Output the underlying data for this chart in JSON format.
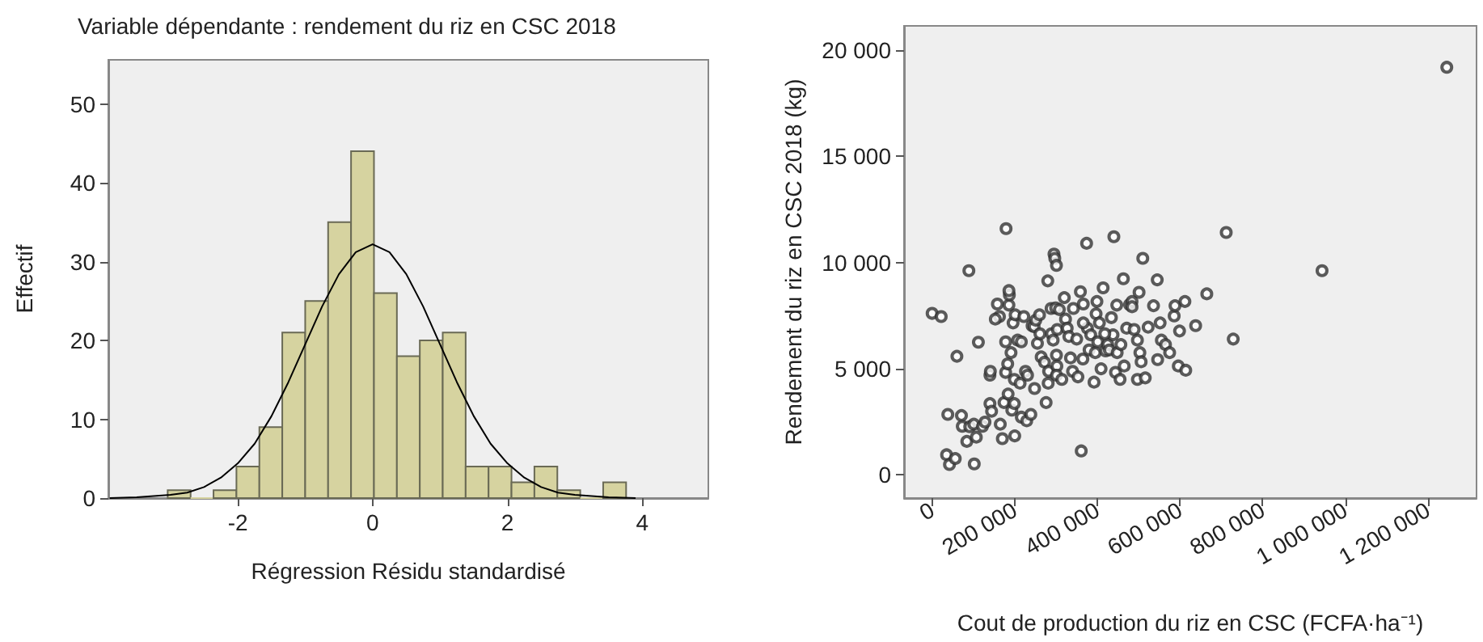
{
  "chart_data": [
    {
      "type": "histogram",
      "title": "Variable dépendante : rendement du riz en CSC 2018",
      "xlabel": "Régression Résidu standardisé",
      "ylabel": "Effectif",
      "bins": [
        -3.04,
        -2.7,
        -2.36,
        -2.02,
        -1.68,
        -1.34,
        -1.0,
        -0.66,
        -0.32,
        0.02,
        0.36,
        0.7,
        1.04,
        1.38,
        1.72,
        2.06,
        2.4,
        2.74,
        3.08,
        3.42,
        3.76
      ],
      "series": [
        {
          "type": "histogram",
          "color": "#d6d3a0",
          "values": [
            1,
            0,
            1,
            4,
            9,
            21,
            25,
            35,
            44,
            26,
            18,
            20,
            21,
            4,
            4,
            2,
            4,
            1,
            0,
            2
          ]
        },
        {
          "type": "line",
          "color": "#000000",
          "x": [
            -3.9,
            -3.5,
            -3,
            -2.75,
            -2.5,
            -2.25,
            -2,
            -1.75,
            -1.5,
            -1.25,
            -1,
            -0.75,
            -0.5,
            -0.25,
            0,
            0.25,
            0.5,
            0.75,
            1,
            1.25,
            1.5,
            1.75,
            2,
            2.25,
            2.5,
            2.75,
            3,
            3.5,
            3.9
          ],
          "values": [
            0.0,
            0.1,
            0.4,
            0.7,
            1.4,
            2.6,
            4.4,
            6.9,
            10.4,
            14.7,
            19.5,
            24.3,
            28.4,
            31.2,
            32.2,
            31.2,
            28.4,
            24.3,
            19.5,
            14.7,
            10.4,
            6.9,
            4.4,
            2.6,
            1.4,
            0.7,
            0.4,
            0.1,
            0.0
          ]
        }
      ],
      "xlim": [
        -3.92,
        4.98
      ],
      "ylim": [
        0,
        55.6
      ],
      "xticks": [
        -2,
        0,
        2,
        4
      ],
      "yticks": [
        0,
        10,
        20,
        30,
        40,
        50
      ],
      "grid": false,
      "marker": "none"
    },
    {
      "type": "scatter",
      "xlabel": "Cout de production du riz en CSC (FCFA·ha⁻¹)",
      "ylabel": "Rendement du riz en CSC 2018 (kg)",
      "color": "#333333",
      "marker": "circle",
      "grid": false,
      "xlim": [
        -68000,
        1318000
      ],
      "ylim": [
        -1100,
        21140
      ],
      "xticks": [
        0,
        {
          "value": 200000,
          "label": "200 000"
        },
        {
          "value": 400000,
          "label": "400 000"
        },
        {
          "value": 600000,
          "label": "600 000"
        },
        {
          "value": 800000,
          "label": "800 000"
        },
        {
          "value": 1000000,
          "label": "1 000 000"
        },
        {
          "value": 1200000,
          "label": "1 200 000"
        }
      ],
      "yticks": [
        0,
        {
          "value": 5000,
          "label": "5 000"
        },
        {
          "value": 10000,
          "label": "10 000"
        },
        {
          "value": 15000,
          "label": "15 000"
        },
        {
          "value": 20000,
          "label": "20 000"
        }
      ],
      "x": [
        0,
        22000,
        38000,
        35000,
        42000,
        56000,
        60000,
        71000,
        73000,
        84000,
        89000,
        91000,
        101000,
        102000,
        107000,
        112000,
        122000,
        128000,
        140000,
        140000,
        141000,
        144000,
        158000,
        163000,
        165000,
        170000,
        174000,
        178000,
        178000,
        179000,
        184000,
        186000,
        187000,
        183000,
        191000,
        193000,
        196000,
        199000,
        200000,
        201000,
        199000,
        207000,
        213000,
        216000,
        222000,
        226000,
        229000,
        231000,
        239000,
        242000,
        247000,
        248000,
        251000,
        255000,
        260000,
        264000,
        272000,
        276000,
        280000,
        281000,
        282000,
        288000,
        289000,
        293000,
        295000,
        297000,
        301000,
        299000,
        301000,
        302000,
        301000,
        303000,
        308000,
        314000,
        320000,
        323000,
        327000,
        331000,
        335000,
        340000,
        342000,
        350000,
        353000,
        359000,
        361000,
        365000,
        366000,
        374000,
        376000,
        380000,
        384000,
        392000,
        395000,
        397000,
        401000,
        405000,
        409000,
        414000,
        420000,
        425000,
        429000,
        434000,
        438000,
        440000,
        444000,
        447000,
        448000,
        455000,
        457000,
        463000,
        465000,
        471000,
        478000,
        484000,
        489000,
        497000,
        497000,
        501000,
        503000,
        506000,
        510000,
        516000,
        523000,
        536000,
        545000,
        546000,
        552000,
        555000,
        565000,
        575000,
        586000,
        588000,
        596000,
        599000,
        612000,
        614000,
        638000,
        665000,
        712000,
        729000,
        944000,
        1246000,
        153000,
        186000,
        216000,
        261000,
        366000,
        418000,
        484000,
        399000
      ],
      "values": [
        7600,
        7450,
        2840,
        940,
        480,
        760,
        5580,
        2790,
        2280,
        1570,
        9610,
        2260,
        2380,
        510,
        1770,
        6240,
        2280,
        2480,
        3350,
        4690,
        4870,
        2990,
        8040,
        7450,
        2380,
        1700,
        3400,
        4820,
        6260,
        11590,
        3800,
        7990,
        8470,
        5220,
        5750,
        3040,
        7150,
        3350,
        1830,
        7530,
        4490,
        6340,
        4310,
        2710,
        7450,
        4870,
        2540,
        4690,
        2840,
        7020,
        6970,
        4060,
        7280,
        6190,
        7530,
        5550,
        5300,
        3400,
        9130,
        4310,
        4870,
        7830,
        6640,
        6340,
        10390,
        10190,
        9860,
        7860,
        5630,
        5120,
        4690,
        6840,
        7780,
        4490,
        8340,
        7330,
        6900,
        6510,
        5500,
        4870,
        7830,
        6390,
        4610,
        8620,
        1120,
        5450,
        8040,
        10900,
        6900,
        5880,
        6590,
        4360,
        5750,
        7580,
        6260,
        7150,
        4990,
        8800,
        5830,
        6130,
        5880,
        7400,
        6590,
        11210,
        4820,
        7990,
        5750,
        4490,
        6130,
        9230,
        5120,
        6900,
        8010,
        8160,
        6840,
        6340,
        4490,
        8590,
        5750,
        5320,
        10190,
        4560,
        6950,
        7960,
        9180,
        5420,
        7150,
        6340,
        6130,
        5750,
        7480,
        7960,
        5120,
        6770,
        8160,
        4920,
        7020,
        8520,
        11410,
        6390,
        9610,
        19190,
        7330,
        8670,
        6260,
        6640,
        7150,
        6640,
        7910,
        8160
      ]
    }
  ]
}
